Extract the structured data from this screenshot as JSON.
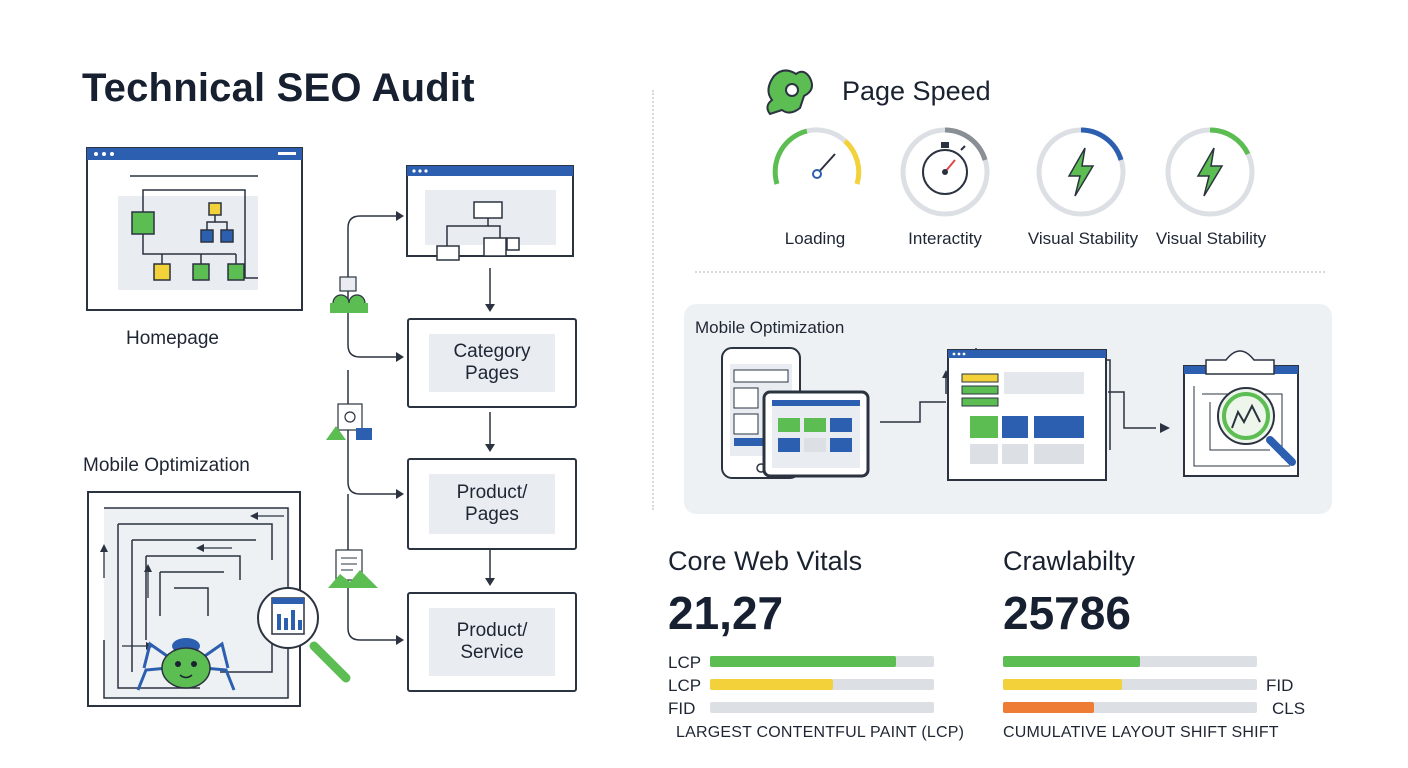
{
  "title": "Technical SEO Audit",
  "left": {
    "homepage_label": "Homepage",
    "mobile_label": "Mobile Optimization",
    "nodes": [
      {
        "label": "Category\nPages"
      },
      {
        "label": "Product/\nPages"
      },
      {
        "label": "Product/\nService"
      }
    ]
  },
  "speed": {
    "title": "Page Speed",
    "gauges": [
      {
        "label": "Loading",
        "icon": "speedometer-icon"
      },
      {
        "label": "Interactity",
        "icon": "stopwatch-icon"
      },
      {
        "label": "Visual Stability",
        "icon": "lightning-icon"
      },
      {
        "label": "Visual Stability",
        "icon": "lightning-icon"
      }
    ]
  },
  "mobile_panel": {
    "label": "Mobile Optimization"
  },
  "cwv": {
    "title": "Core Web Vitals",
    "value": "21,27",
    "bars": [
      {
        "label": "LCP",
        "fraction": 0.83,
        "color": "#5cbd52"
      },
      {
        "label": "LCP",
        "fraction": 0.55,
        "color": "#f2d13a"
      },
      {
        "label": "FID",
        "fraction": 0.0,
        "color": "#dcdfe3"
      }
    ],
    "footnote": "LARGEST CONTENTFUL PAINT (LCP)"
  },
  "crawl": {
    "title": "Crawlabilty",
    "value": "25786",
    "bars": [
      {
        "label": "",
        "fraction": 0.54,
        "color": "#5cbd52"
      },
      {
        "label": "FID",
        "fraction": 0.47,
        "color": "#f2d13a"
      },
      {
        "label": "CLS",
        "fraction": 0.36,
        "color": "#ef7c35"
      }
    ],
    "footnote": "CUMULATIVE LAYOUT SHIFT SHIFT"
  },
  "colors": {
    "accent_blue": "#2d5fb0",
    "green": "#5cbd52",
    "yellow": "#f2d13a",
    "orange": "#ef7c35",
    "dark": "#2b3340"
  }
}
